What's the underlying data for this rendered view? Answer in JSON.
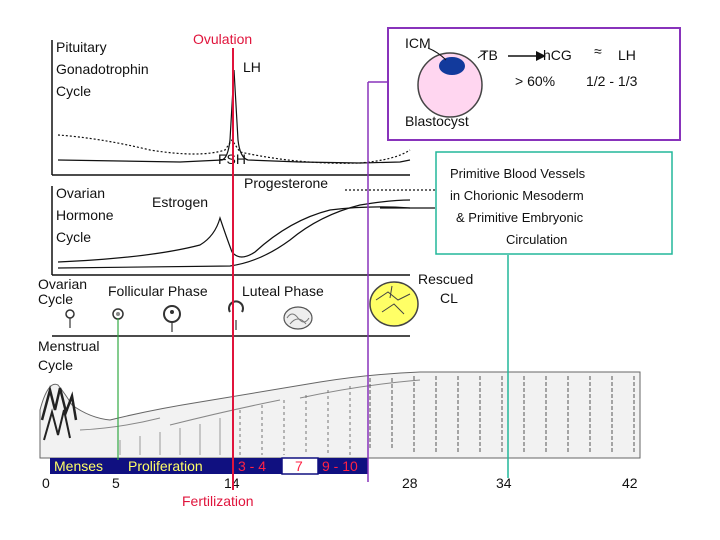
{
  "title_ovulation": "Ovulation",
  "pituitary": {
    "line1": "Pituitary",
    "line2": "Gonadotrophin",
    "line3": "Cycle",
    "lh": "LH",
    "fsh": "FSH"
  },
  "ovarian_hormone": {
    "line1": "Ovarian",
    "line2": "Hormone",
    "line3": "Cycle",
    "estrogen": "Estrogen",
    "progesterone": "Progesterone"
  },
  "ovarian_cycle": {
    "line1": "Ovarian",
    "line2": "Cycle",
    "follicular": "Follicular Phase",
    "luteal": "Luteal Phase",
    "rescued1": "Rescued",
    "rescued2": "CL"
  },
  "menstrual": {
    "line1": "Menstrual",
    "line2": "Cycle"
  },
  "blastocyst": {
    "icm": "ICM",
    "tb": "TB",
    "hcg": "hCG",
    "approx": "≈",
    "lh": "LH",
    "pct": "> 60%",
    "ratio": "1/2 - 1/3",
    "label": "Blastocyst"
  },
  "vessels": {
    "line1": "Primitive Blood Vessels",
    "line2": "in Chorionic Mesoderm",
    "line3": "& Primitive Embryonic",
    "line4": "Circulation"
  },
  "phase_bar": {
    "menses": "Menses",
    "proliferation": "Proliferation",
    "d34": "3 - 4",
    "d7": "7",
    "d910": "9 - 10"
  },
  "axis_days": [
    "0",
    "5",
    "14",
    "28",
    "34",
    "42"
  ],
  "fertilization": "Fertilization",
  "colors": {
    "red": "#e0143c",
    "purple": "#8833bb",
    "teal": "#22b79a",
    "green": "#33aa44",
    "bar": "#101080",
    "yellow": "#ffff66"
  }
}
